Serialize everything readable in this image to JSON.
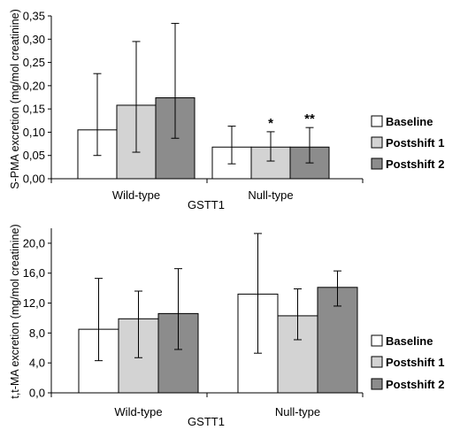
{
  "chart_data": [
    {
      "type": "bar",
      "ylabel": "S-PMA excretion (mg/mol creatinine)",
      "xlabel": "GSTT1",
      "categories": [
        "Wild-type",
        "Null-type"
      ],
      "ylim": [
        0,
        0.35
      ],
      "yticks": [
        "0,00",
        "0,05",
        "0,10",
        "0,15",
        "0,20",
        "0,25",
        "0,30",
        "0,35"
      ],
      "grid": false,
      "legend_position": "right",
      "series": [
        {
          "name": "Baseline",
          "color": "#ffffff",
          "values": [
            0.105,
            0.068
          ],
          "err_high": [
            0.226,
            0.113
          ],
          "err_low": [
            0.05,
            0.032
          ]
        },
        {
          "name": "Postshift 1",
          "color": "#d3d3d3",
          "values": [
            0.158,
            0.068
          ],
          "err_high": [
            0.295,
            0.101
          ],
          "err_low": [
            0.057,
            0.038
          ]
        },
        {
          "name": "Postshift 2",
          "color": "#8c8c8c",
          "values": [
            0.174,
            0.068
          ],
          "err_high": [
            0.334,
            0.11
          ],
          "err_low": [
            0.087,
            0.034
          ]
        }
      ],
      "annotations": [
        {
          "text": "*",
          "series": "Postshift 1",
          "category": "Null-type"
        },
        {
          "text": "**",
          "series": "Postshift 2",
          "category": "Null-type"
        }
      ]
    },
    {
      "type": "bar",
      "ylabel": "t,t-MA excretion (mg/mol creatinine)",
      "xlabel": "GSTT1",
      "categories": [
        "Wild-type",
        "Null-type"
      ],
      "ylim": [
        0,
        22
      ],
      "yticks": [
        "0,0",
        "4,0",
        "8,0",
        "12,0",
        "16,0",
        "20,0"
      ],
      "grid": false,
      "legend_position": "right",
      "series": [
        {
          "name": "Baseline",
          "color": "#ffffff",
          "values": [
            8.5,
            13.2
          ],
          "err_high": [
            15.3,
            21.3
          ],
          "err_low": [
            4.3,
            5.3
          ]
        },
        {
          "name": "Postshift 1",
          "color": "#d3d3d3",
          "values": [
            9.9,
            10.3
          ],
          "err_high": [
            13.6,
            13.9
          ],
          "err_low": [
            4.7,
            7.1
          ]
        },
        {
          "name": "Postshift 2",
          "color": "#8c8c8c",
          "values": [
            10.6,
            14.1
          ],
          "err_high": [
            16.6,
            16.3
          ],
          "err_low": [
            5.8,
            11.6
          ]
        }
      ],
      "annotations": []
    }
  ]
}
